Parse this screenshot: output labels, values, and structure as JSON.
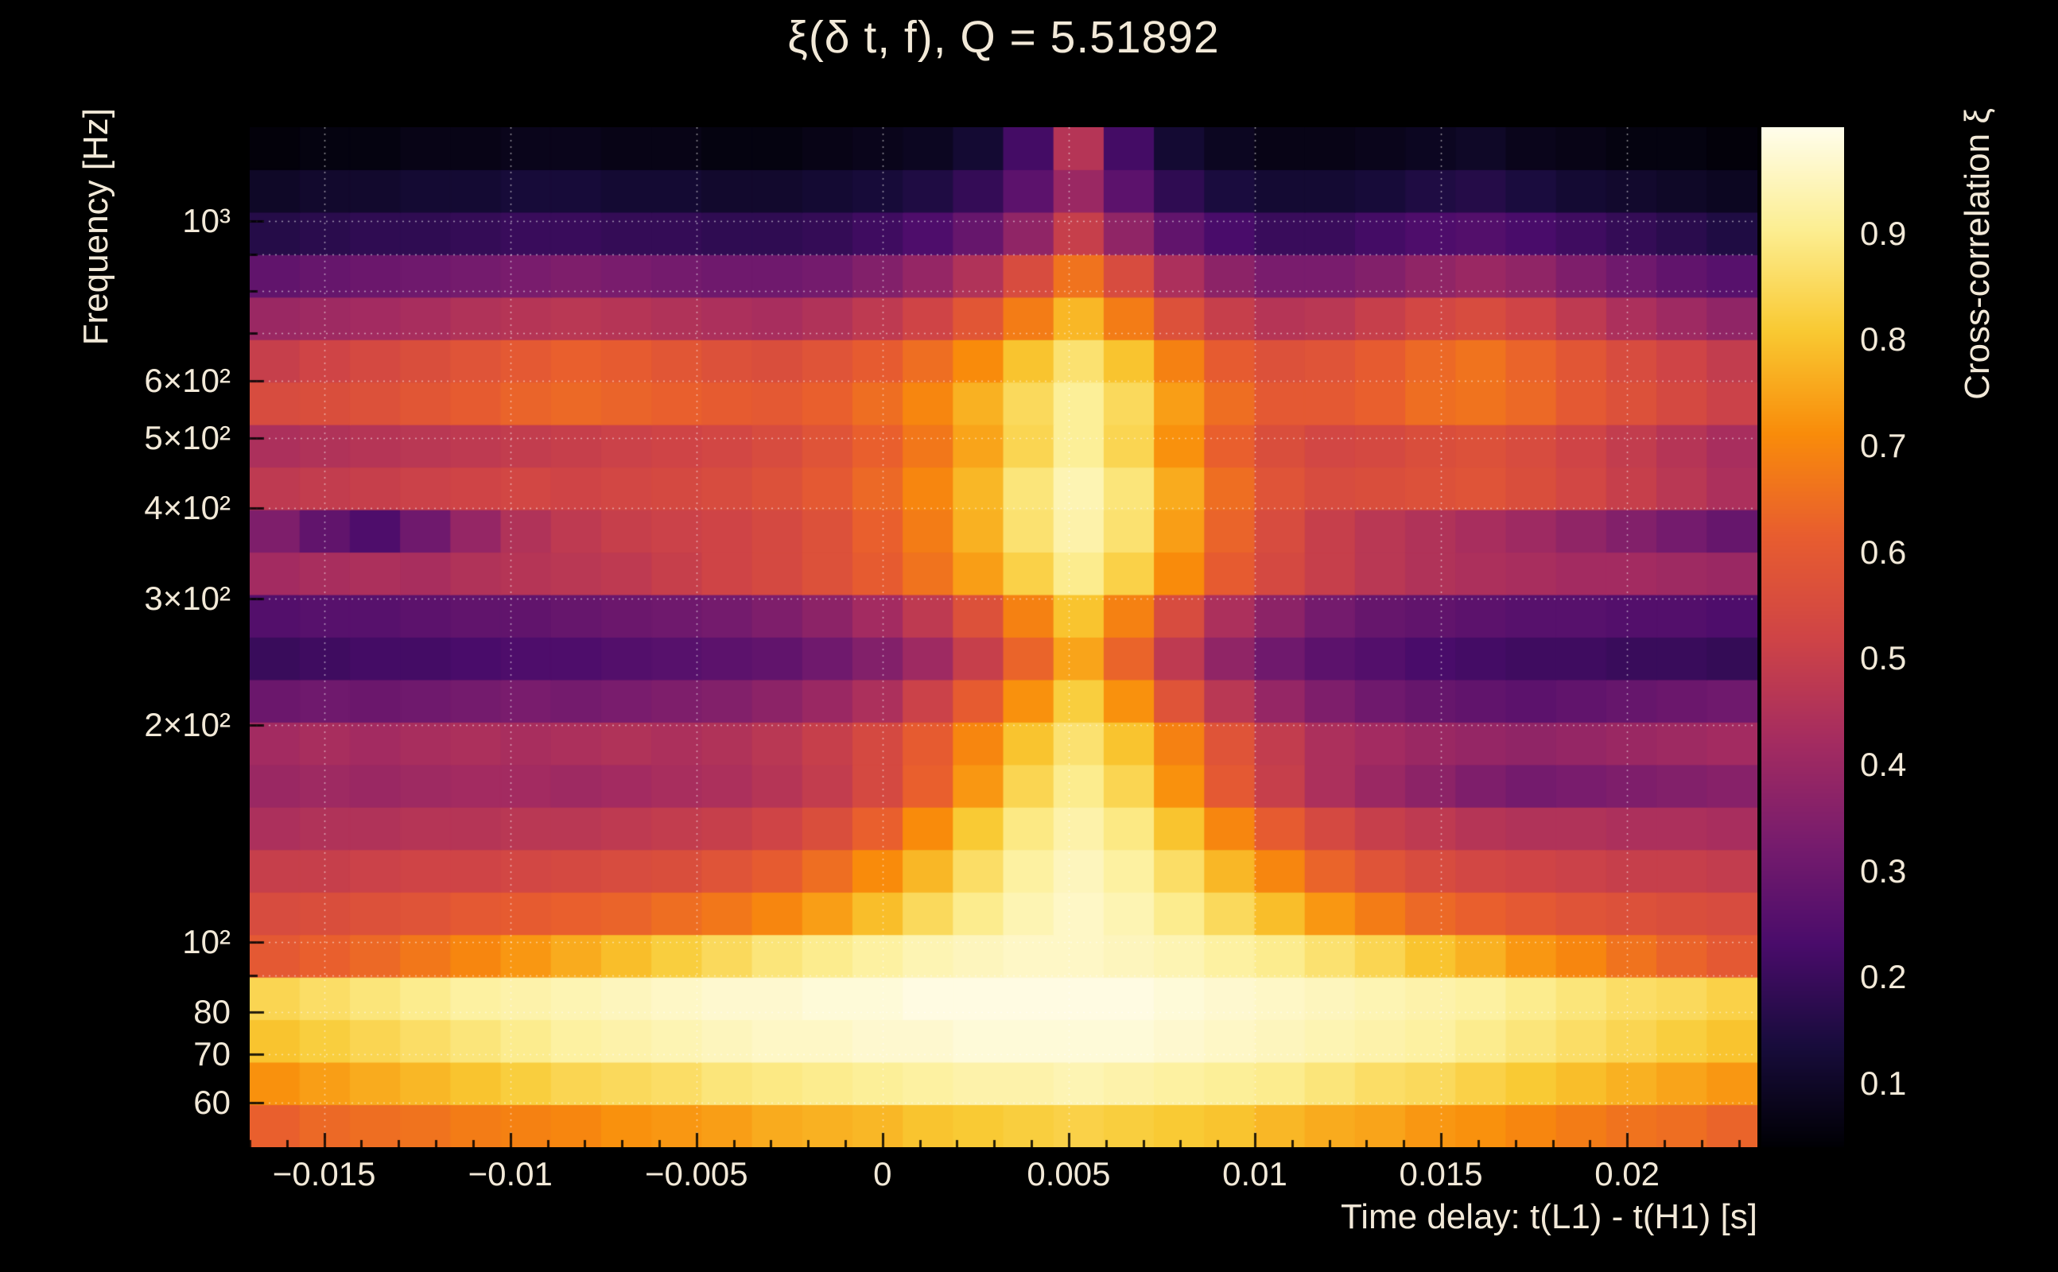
{
  "colors": {
    "background": "#000000",
    "text": "#f2e9d8",
    "grid": "#ffffff"
  },
  "chart_data": {
    "type": "heatmap",
    "title": "ξ(δ t, f), Q = 5.51892",
    "q_value": 5.51892,
    "xlabel": "Time delay: t(L1) - t(H1) [s]",
    "ylabel": "Frequency [Hz]",
    "zlabel": "Cross-correlation ξ",
    "x_range": [
      -0.017,
      0.0235
    ],
    "y_range_hz": [
      52,
      1350
    ],
    "y_scale": "log",
    "z_range": [
      0.04,
      1.0
    ],
    "grid": true,
    "legend_position": "right-colorbar",
    "x_ticks": [
      {
        "v": -0.015,
        "label": "−0.015"
      },
      {
        "v": -0.01,
        "label": "−0.01"
      },
      {
        "v": -0.005,
        "label": "−0.005"
      },
      {
        "v": 0,
        "label": "0"
      },
      {
        "v": 0.005,
        "label": "0.005"
      },
      {
        "v": 0.01,
        "label": "0.01"
      },
      {
        "v": 0.015,
        "label": "0.015"
      },
      {
        "v": 0.02,
        "label": "0.02"
      }
    ],
    "y_ticks": [
      {
        "v": 1000,
        "label": "10³"
      },
      {
        "v": 900,
        "label": ""
      },
      {
        "v": 800,
        "label": ""
      },
      {
        "v": 700,
        "label": ""
      },
      {
        "v": 600,
        "label": "6×10²"
      },
      {
        "v": 500,
        "label": "5×10²"
      },
      {
        "v": 400,
        "label": "4×10²"
      },
      {
        "v": 300,
        "label": "3×10²"
      },
      {
        "v": 200,
        "label": "2×10²"
      },
      {
        "v": 100,
        "label": "10²"
      },
      {
        "v": 90,
        "label": ""
      },
      {
        "v": 80,
        "label": "80"
      },
      {
        "v": 70,
        "label": "70"
      },
      {
        "v": 60,
        "label": "60"
      }
    ],
    "z_ticks": [
      {
        "v": 0.9,
        "label": "0.9"
      },
      {
        "v": 0.8,
        "label": "0.8"
      },
      {
        "v": 0.7,
        "label": "0.7"
      },
      {
        "v": 0.6,
        "label": "0.6"
      },
      {
        "v": 0.5,
        "label": "0.5"
      },
      {
        "v": 0.4,
        "label": "0.4"
      },
      {
        "v": 0.3,
        "label": "0.3"
      },
      {
        "v": 0.2,
        "label": "0.2"
      },
      {
        "v": 0.1,
        "label": "0.1"
      }
    ],
    "colormap": [
      [
        0.0,
        [
          0,
          0,
          4
        ]
      ],
      [
        0.1,
        [
          24,
          12,
          60
        ]
      ],
      [
        0.2,
        [
          74,
          12,
          107
        ]
      ],
      [
        0.3,
        [
          120,
          28,
          109
        ]
      ],
      [
        0.4,
        [
          165,
          44,
          96
        ]
      ],
      [
        0.5,
        [
          207,
          68,
          70
        ]
      ],
      [
        0.6,
        [
          232,
          93,
          47
        ]
      ],
      [
        0.7,
        [
          249,
          140,
          10
        ]
      ],
      [
        0.8,
        [
          249,
          201,
          50
        ]
      ],
      [
        0.9,
        [
          252,
          238,
          146
        ]
      ],
      [
        1.0,
        [
          255,
          253,
          235
        ]
      ]
    ],
    "time_bins": 30,
    "freq_bins": 24,
    "values_row_order": "bottom-to-top (low frequency first)",
    "values": [
      [
        0.62,
        0.64,
        0.65,
        0.66,
        0.68,
        0.69,
        0.7,
        0.72,
        0.73,
        0.74,
        0.76,
        0.77,
        0.78,
        0.8,
        0.81,
        0.82,
        0.83,
        0.82,
        0.81,
        0.8,
        0.78,
        0.76,
        0.75,
        0.73,
        0.72,
        0.7,
        0.68,
        0.66,
        0.65,
        0.63
      ],
      [
        0.72,
        0.74,
        0.76,
        0.78,
        0.8,
        0.82,
        0.84,
        0.85,
        0.86,
        0.88,
        0.89,
        0.9,
        0.91,
        0.92,
        0.93,
        0.93,
        0.94,
        0.93,
        0.92,
        0.91,
        0.9,
        0.88,
        0.86,
        0.85,
        0.83,
        0.81,
        0.79,
        0.77,
        0.75,
        0.73
      ],
      [
        0.8,
        0.82,
        0.84,
        0.86,
        0.88,
        0.9,
        0.92,
        0.93,
        0.94,
        0.95,
        0.96,
        0.96,
        0.97,
        0.97,
        0.98,
        0.98,
        0.98,
        0.98,
        0.97,
        0.96,
        0.95,
        0.94,
        0.93,
        0.92,
        0.9,
        0.88,
        0.86,
        0.84,
        0.82,
        0.8
      ],
      [
        0.84,
        0.86,
        0.88,
        0.9,
        0.92,
        0.93,
        0.94,
        0.95,
        0.96,
        0.97,
        0.97,
        0.98,
        0.98,
        0.99,
        0.99,
        0.99,
        0.99,
        0.99,
        0.98,
        0.97,
        0.96,
        0.95,
        0.94,
        0.93,
        0.92,
        0.9,
        0.88,
        0.86,
        0.85,
        0.83
      ],
      [
        0.6,
        0.62,
        0.64,
        0.67,
        0.7,
        0.73,
        0.76,
        0.79,
        0.82,
        0.85,
        0.88,
        0.9,
        0.92,
        0.94,
        0.95,
        0.96,
        0.96,
        0.95,
        0.94,
        0.92,
        0.9,
        0.87,
        0.84,
        0.8,
        0.77,
        0.73,
        0.7,
        0.66,
        0.63,
        0.6
      ],
      [
        0.55,
        0.56,
        0.57,
        0.58,
        0.6,
        0.61,
        0.62,
        0.63,
        0.65,
        0.67,
        0.7,
        0.74,
        0.79,
        0.85,
        0.9,
        0.94,
        0.96,
        0.94,
        0.9,
        0.85,
        0.79,
        0.73,
        0.68,
        0.64,
        0.62,
        0.6,
        0.58,
        0.57,
        0.56,
        0.55
      ],
      [
        0.5,
        0.5,
        0.51,
        0.52,
        0.52,
        0.53,
        0.54,
        0.55,
        0.56,
        0.58,
        0.61,
        0.65,
        0.71,
        0.78,
        0.86,
        0.92,
        0.95,
        0.92,
        0.86,
        0.78,
        0.7,
        0.63,
        0.58,
        0.55,
        0.53,
        0.52,
        0.51,
        0.5,
        0.5,
        0.49
      ],
      [
        0.44,
        0.45,
        0.45,
        0.46,
        0.46,
        0.47,
        0.47,
        0.48,
        0.49,
        0.5,
        0.52,
        0.56,
        0.62,
        0.71,
        0.81,
        0.89,
        0.93,
        0.89,
        0.8,
        0.7,
        0.61,
        0.54,
        0.5,
        0.48,
        0.46,
        0.45,
        0.45,
        0.44,
        0.44,
        0.43
      ],
      [
        0.4,
        0.41,
        0.4,
        0.41,
        0.42,
        0.42,
        0.41,
        0.42,
        0.43,
        0.44,
        0.46,
        0.49,
        0.54,
        0.62,
        0.73,
        0.84,
        0.9,
        0.84,
        0.72,
        0.6,
        0.5,
        0.44,
        0.4,
        0.37,
        0.34,
        0.32,
        0.33,
        0.34,
        0.35,
        0.36
      ],
      [
        0.42,
        0.43,
        0.42,
        0.43,
        0.44,
        0.43,
        0.44,
        0.45,
        0.44,
        0.45,
        0.47,
        0.5,
        0.54,
        0.61,
        0.7,
        0.8,
        0.87,
        0.8,
        0.69,
        0.58,
        0.49,
        0.44,
        0.42,
        0.4,
        0.39,
        0.38,
        0.39,
        0.4,
        0.41,
        0.42
      ],
      [
        0.3,
        0.31,
        0.3,
        0.31,
        0.32,
        0.33,
        0.32,
        0.33,
        0.34,
        0.35,
        0.37,
        0.4,
        0.44,
        0.51,
        0.61,
        0.72,
        0.82,
        0.72,
        0.58,
        0.47,
        0.39,
        0.34,
        0.31,
        0.29,
        0.28,
        0.27,
        0.28,
        0.29,
        0.3,
        0.31
      ],
      [
        0.2,
        0.21,
        0.22,
        0.22,
        0.23,
        0.24,
        0.24,
        0.25,
        0.26,
        0.27,
        0.28,
        0.31,
        0.35,
        0.41,
        0.5,
        0.63,
        0.75,
        0.63,
        0.48,
        0.38,
        0.31,
        0.27,
        0.25,
        0.23,
        0.22,
        0.21,
        0.21,
        0.2,
        0.2,
        0.19
      ],
      [
        0.25,
        0.26,
        0.26,
        0.27,
        0.28,
        0.28,
        0.29,
        0.3,
        0.31,
        0.32,
        0.34,
        0.37,
        0.42,
        0.48,
        0.57,
        0.69,
        0.8,
        0.69,
        0.55,
        0.44,
        0.37,
        0.32,
        0.29,
        0.28,
        0.27,
        0.26,
        0.26,
        0.25,
        0.25,
        0.24
      ],
      [
        0.42,
        0.43,
        0.44,
        0.43,
        0.45,
        0.46,
        0.47,
        0.48,
        0.5,
        0.52,
        0.54,
        0.57,
        0.61,
        0.66,
        0.74,
        0.83,
        0.9,
        0.83,
        0.71,
        0.61,
        0.54,
        0.5,
        0.47,
        0.45,
        0.44,
        0.43,
        0.42,
        0.42,
        0.41,
        0.4
      ],
      [
        0.34,
        0.28,
        0.24,
        0.31,
        0.39,
        0.45,
        0.48,
        0.5,
        0.51,
        0.52,
        0.54,
        0.57,
        0.62,
        0.68,
        0.77,
        0.87,
        0.93,
        0.87,
        0.74,
        0.63,
        0.55,
        0.5,
        0.47,
        0.45,
        0.43,
        0.41,
        0.38,
        0.35,
        0.32,
        0.29
      ],
      [
        0.48,
        0.49,
        0.5,
        0.51,
        0.52,
        0.53,
        0.52,
        0.53,
        0.54,
        0.55,
        0.57,
        0.6,
        0.64,
        0.7,
        0.78,
        0.88,
        0.94,
        0.88,
        0.76,
        0.65,
        0.58,
        0.55,
        0.56,
        0.57,
        0.58,
        0.56,
        0.53,
        0.5,
        0.47,
        0.44
      ],
      [
        0.44,
        0.45,
        0.46,
        0.47,
        0.48,
        0.49,
        0.5,
        0.51,
        0.52,
        0.53,
        0.55,
        0.58,
        0.62,
        0.67,
        0.75,
        0.84,
        0.91,
        0.84,
        0.72,
        0.62,
        0.56,
        0.53,
        0.54,
        0.56,
        0.57,
        0.55,
        0.52,
        0.49,
        0.46,
        0.43
      ],
      [
        0.55,
        0.56,
        0.57,
        0.59,
        0.61,
        0.63,
        0.64,
        0.63,
        0.62,
        0.61,
        0.6,
        0.62,
        0.65,
        0.7,
        0.77,
        0.85,
        0.91,
        0.85,
        0.74,
        0.65,
        0.6,
        0.6,
        0.62,
        0.65,
        0.66,
        0.64,
        0.6,
        0.57,
        0.54,
        0.51
      ],
      [
        0.5,
        0.52,
        0.54,
        0.56,
        0.58,
        0.6,
        0.62,
        0.61,
        0.59,
        0.57,
        0.56,
        0.58,
        0.61,
        0.65,
        0.71,
        0.8,
        0.87,
        0.8,
        0.69,
        0.61,
        0.57,
        0.58,
        0.61,
        0.64,
        0.66,
        0.63,
        0.59,
        0.55,
        0.52,
        0.49
      ],
      [
        0.4,
        0.41,
        0.42,
        0.43,
        0.45,
        0.46,
        0.47,
        0.46,
        0.45,
        0.44,
        0.43,
        0.45,
        0.48,
        0.52,
        0.59,
        0.68,
        0.78,
        0.68,
        0.57,
        0.5,
        0.46,
        0.47,
        0.5,
        0.53,
        0.55,
        0.52,
        0.48,
        0.44,
        0.41,
        0.38
      ],
      [
        0.28,
        0.29,
        0.3,
        0.31,
        0.32,
        0.33,
        0.34,
        0.33,
        0.32,
        0.31,
        0.31,
        0.32,
        0.35,
        0.39,
        0.45,
        0.55,
        0.66,
        0.55,
        0.44,
        0.37,
        0.33,
        0.33,
        0.35,
        0.38,
        0.4,
        0.38,
        0.34,
        0.31,
        0.28,
        0.26
      ],
      [
        0.16,
        0.17,
        0.18,
        0.18,
        0.19,
        0.2,
        0.2,
        0.19,
        0.19,
        0.18,
        0.18,
        0.19,
        0.21,
        0.24,
        0.29,
        0.38,
        0.5,
        0.38,
        0.28,
        0.23,
        0.2,
        0.2,
        0.22,
        0.24,
        0.25,
        0.23,
        0.21,
        0.19,
        0.17,
        0.15
      ],
      [
        0.1,
        0.11,
        0.11,
        0.12,
        0.12,
        0.13,
        0.13,
        0.12,
        0.12,
        0.11,
        0.11,
        0.12,
        0.13,
        0.15,
        0.19,
        0.27,
        0.4,
        0.27,
        0.18,
        0.14,
        0.12,
        0.12,
        0.13,
        0.15,
        0.16,
        0.14,
        0.12,
        0.11,
        0.1,
        0.09
      ],
      [
        0.05,
        0.06,
        0.06,
        0.07,
        0.07,
        0.08,
        0.08,
        0.07,
        0.07,
        0.06,
        0.06,
        0.07,
        0.08,
        0.09,
        0.12,
        0.22,
        0.46,
        0.22,
        0.12,
        0.09,
        0.07,
        0.07,
        0.08,
        0.09,
        0.1,
        0.08,
        0.07,
        0.06,
        0.06,
        0.05
      ]
    ]
  }
}
